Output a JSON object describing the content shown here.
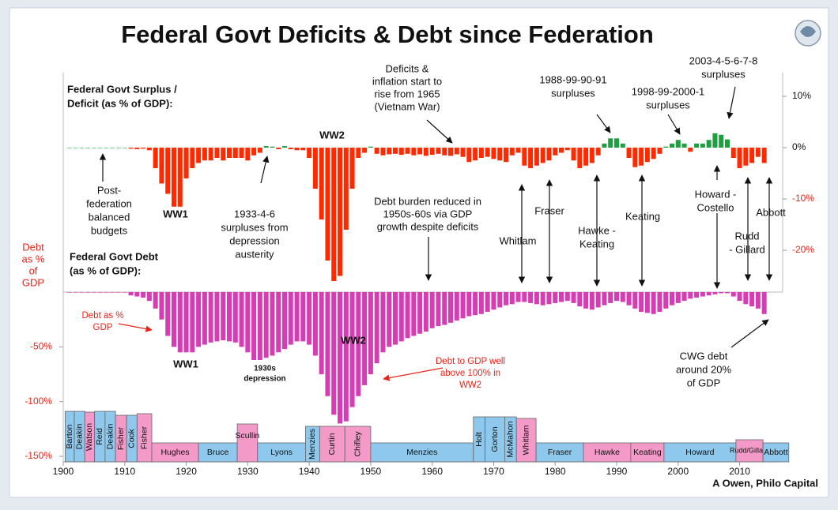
{
  "title": "Federal Govt Deficits & Debt since Federation",
  "chart_data": [
    {
      "type": "bar",
      "x": [
        1901,
        1902,
        1903,
        1904,
        1905,
        1906,
        1907,
        1908,
        1909,
        1910,
        1911,
        1912,
        1913,
        1914,
        1915,
        1916,
        1917,
        1918,
        1919,
        1920,
        1921,
        1922,
        1923,
        1924,
        1925,
        1926,
        1927,
        1928,
        1929,
        1930,
        1931,
        1932,
        1933,
        1934,
        1935,
        1936,
        1937,
        1938,
        1939,
        1940,
        1941,
        1942,
        1943,
        1944,
        1945,
        1946,
        1947,
        1948,
        1949,
        1950,
        1951,
        1952,
        1953,
        1954,
        1955,
        1956,
        1957,
        1958,
        1959,
        1960,
        1961,
        1962,
        1963,
        1964,
        1965,
        1966,
        1967,
        1968,
        1969,
        1970,
        1971,
        1972,
        1973,
        1974,
        1975,
        1976,
        1977,
        1978,
        1979,
        1980,
        1981,
        1982,
        1983,
        1984,
        1985,
        1986,
        1987,
        1988,
        1989,
        1990,
        1991,
        1992,
        1993,
        1994,
        1995,
        1996,
        1997,
        1998,
        1999,
        2000,
        2001,
        2002,
        2003,
        2004,
        2005,
        2006,
        2007,
        2008,
        2009,
        2010,
        2011,
        2012,
        2013,
        2014
      ],
      "values": [
        0,
        0,
        0,
        0,
        0,
        0,
        0,
        0,
        0,
        0,
        -0.2,
        -0.3,
        -0.2,
        -0.5,
        -4,
        -7,
        -9,
        -11.5,
        -11.5,
        -6,
        -4,
        -3,
        -2.5,
        -2.5,
        -2,
        -2.5,
        -2,
        -2,
        -2,
        -2.5,
        -1.5,
        -1,
        0.3,
        0.2,
        -0.3,
        0.3,
        -0.3,
        -0.5,
        -0.5,
        -2,
        -8,
        -14,
        -22,
        -26,
        -25,
        -16,
        -8,
        -2,
        -1,
        0.2,
        -1.2,
        -1.5,
        -1.3,
        -1.2,
        -1.4,
        -1.2,
        -1.5,
        -1.3,
        -1.6,
        -1.4,
        -1.2,
        -1.5,
        -1.6,
        -1.3,
        -1.8,
        -2.8,
        -2.5,
        -2,
        -1.8,
        -2.2,
        -2.5,
        -2.8,
        -1.5,
        -1,
        -3.5,
        -4,
        -3.5,
        -3,
        -2.5,
        -1.5,
        -1,
        -0.5,
        -2.5,
        -4,
        -3.5,
        -3,
        -1.5,
        0.8,
        1.8,
        1.8,
        0.8,
        -2,
        -3.8,
        -3.5,
        -2.8,
        -2.2,
        -1.2,
        0.2,
        0.8,
        1.5,
        0.8,
        -0.8,
        0.8,
        0.8,
        1.5,
        2.8,
        2.5,
        1.6,
        -2,
        -4,
        -3.5,
        -3,
        -1.8,
        -3
      ],
      "color": "#ff2a00",
      "positive_color": "#1fa040",
      "xlim": [
        1900,
        2017
      ],
      "ylim": [
        -28,
        15
      ],
      "yticks": [
        {
          "value": 10,
          "label": "10%"
        },
        {
          "value": 0,
          "label": "0%"
        },
        {
          "value": -10,
          "label": "-10%"
        },
        {
          "value": -20,
          "label": "-20%"
        }
      ]
    },
    {
      "type": "bar",
      "x": [
        1901,
        1902,
        1903,
        1904,
        1905,
        1906,
        1907,
        1908,
        1909,
        1910,
        1911,
        1912,
        1913,
        1914,
        1915,
        1916,
        1917,
        1918,
        1919,
        1920,
        1921,
        1922,
        1923,
        1924,
        1925,
        1926,
        1927,
        1928,
        1929,
        1930,
        1931,
        1932,
        1933,
        1934,
        1935,
        1936,
        1937,
        1938,
        1939,
        1940,
        1941,
        1942,
        1943,
        1944,
        1945,
        1946,
        1947,
        1948,
        1949,
        1950,
        1951,
        1952,
        1953,
        1954,
        1955,
        1956,
        1957,
        1958,
        1959,
        1960,
        1961,
        1962,
        1963,
        1964,
        1965,
        1966,
        1967,
        1968,
        1969,
        1970,
        1971,
        1972,
        1973,
        1974,
        1975,
        1976,
        1977,
        1978,
        1979,
        1980,
        1981,
        1982,
        1983,
        1984,
        1985,
        1986,
        1987,
        1988,
        1989,
        1990,
        1991,
        1992,
        1993,
        1994,
        1995,
        1996,
        1997,
        1998,
        1999,
        2000,
        2001,
        2002,
        2003,
        2004,
        2005,
        2006,
        2007,
        2008,
        2009,
        2010,
        2011,
        2012,
        2013,
        2014
      ],
      "values": [
        0,
        0,
        0,
        0,
        0,
        0,
        0,
        0,
        0,
        0,
        -3,
        -4,
        -5,
        -8,
        -15,
        -25,
        -40,
        -50,
        -55,
        -55,
        -55,
        -50,
        -48,
        -46,
        -45,
        -44,
        -45,
        -46,
        -50,
        -55,
        -62,
        -62,
        -60,
        -58,
        -55,
        -52,
        -48,
        -45,
        -45,
        -48,
        -58,
        -75,
        -95,
        -112,
        -120,
        -118,
        -105,
        -95,
        -85,
        -75,
        -65,
        -55,
        -50,
        -48,
        -45,
        -42,
        -40,
        -38,
        -36,
        -33,
        -31,
        -30,
        -28,
        -26,
        -24,
        -22,
        -21,
        -20,
        -18,
        -16,
        -14,
        -12,
        -11,
        -9,
        -9,
        -10,
        -11,
        -12,
        -11,
        -10,
        -9,
        -8,
        -10,
        -13,
        -15,
        -16,
        -14,
        -12,
        -10,
        -8,
        -9,
        -12,
        -15,
        -18,
        -19,
        -20,
        -18,
        -15,
        -12,
        -10,
        -8,
        -6,
        -5,
        -4,
        -3,
        -2,
        -1,
        -1,
        -4,
        -8,
        -11,
        -13,
        -15,
        -20
      ],
      "color": "#d63cb4",
      "xlim": [
        1900,
        2017
      ],
      "xticks": [
        1900,
        1910,
        1920,
        1930,
        1940,
        1950,
        1960,
        1970,
        1980,
        1990,
        2000,
        2010
      ],
      "ylim": [
        -155,
        0
      ],
      "yticks": [
        {
          "value": -50,
          "label": "-50%"
        },
        {
          "value": -100,
          "label": "-100%"
        },
        {
          "value": -150,
          "label": "-150%"
        }
      ]
    }
  ],
  "leaders": [
    {
      "name": "Barton",
      "from": 1900.3,
      "to": 1901.8,
      "color": "#8ec8ec"
    },
    {
      "name": "Deakin",
      "from": 1901.8,
      "to": 1903.5,
      "color": "#8ec8ec"
    },
    {
      "name": "Watson",
      "from": 1903.5,
      "to": 1905.1,
      "color": "#f49ac8"
    },
    {
      "name": "Reid",
      "from": 1905.1,
      "to": 1906.8,
      "color": "#8ec8ec"
    },
    {
      "name": "Deakin",
      "from": 1906.8,
      "to": 1908.5,
      "color": "#8ec8ec"
    },
    {
      "name": "Fisher",
      "from": 1908.5,
      "to": 1910.3,
      "color": "#f49ac8"
    },
    {
      "name": "Cook",
      "from": 1910.3,
      "to": 1912,
      "color": "#8ec8ec"
    },
    {
      "name": "Fisher",
      "from": 1912,
      "to": 1914.4,
      "color": "#f49ac8"
    },
    {
      "name": "Hughes",
      "from": 1914.4,
      "to": 1922,
      "color": "#f49ac8"
    },
    {
      "name": "Bruce",
      "from": 1922,
      "to": 1928.3,
      "color": "#8ec8ec"
    },
    {
      "name": "Scullin",
      "from": 1928.3,
      "to": 1931.6,
      "color": "#f49ac8"
    },
    {
      "name": "Lyons",
      "from": 1931.6,
      "to": 1939.4,
      "color": "#8ec8ec"
    },
    {
      "name": "Menzies",
      "from": 1939.4,
      "to": 1941.7,
      "color": "#8ec8ec"
    },
    {
      "name": "Curtin",
      "from": 1941.7,
      "to": 1945.8,
      "color": "#f49ac8"
    },
    {
      "name": "Chifley",
      "from": 1945.8,
      "to": 1950,
      "color": "#f49ac8"
    },
    {
      "name": "Menzies",
      "from": 1950,
      "to": 1966.7,
      "color": "#8ec8ec"
    },
    {
      "name": "Holt",
      "from": 1966.7,
      "to": 1968.6,
      "color": "#8ec8ec"
    },
    {
      "name": "Gorton",
      "from": 1968.6,
      "to": 1971.8,
      "color": "#8ec8ec"
    },
    {
      "name": "McMahon",
      "from": 1971.8,
      "to": 1973.7,
      "color": "#8ec8ec"
    },
    {
      "name": "Whitlam",
      "from": 1973.7,
      "to": 1976.9,
      "color": "#f49ac8"
    },
    {
      "name": "Fraser",
      "from": 1976.9,
      "to": 1984.6,
      "color": "#8ec8ec"
    },
    {
      "name": "Hawke",
      "from": 1984.6,
      "to": 1992.3,
      "color": "#f49ac8"
    },
    {
      "name": "Keating",
      "from": 1992.3,
      "to": 1997.7,
      "color": "#f49ac8"
    },
    {
      "name": "Howard",
      "from": 1997.7,
      "to": 2009.4,
      "color": "#8ec8ec"
    },
    {
      "name": "Rudd/Gillard",
      "from": 2009.4,
      "to": 2013.8,
      "color": "#f49ac8"
    },
    {
      "name": "Abbott",
      "from": 2013.8,
      "to": 2018,
      "color": "#8ec8ec"
    }
  ],
  "annotations": [
    {
      "lines": [
        "Federal Govt Surplus /",
        "Deficit (as % of GDP):"
      ]
    },
    {
      "lines": [
        "Post-",
        "federation",
        "balanced",
        "budgets"
      ]
    },
    {
      "lines": [
        "WW1"
      ]
    },
    {
      "lines": [
        "1933-4-6",
        "surpluses from",
        "depression",
        "austerity"
      ]
    },
    {
      "lines": [
        "WW2"
      ]
    },
    {
      "lines": [
        "Deficits &",
        "inflation start to",
        "rise from 1965",
        "(Vietnam War)"
      ]
    },
    {
      "lines": [
        "Debt burden reduced in",
        "1950s-60s via GDP",
        "growth despite deficits"
      ]
    },
    {
      "lines": [
        "1988-99-90-91",
        "surpluses"
      ]
    },
    {
      "lines": [
        "1998-99-2000-1",
        "surpluses"
      ]
    },
    {
      "lines": [
        "2003-4-5-6-7-8",
        "surpluses"
      ]
    },
    {
      "lines": [
        "Whitlam"
      ]
    },
    {
      "lines": [
        "Fraser"
      ]
    },
    {
      "lines": [
        "Hawke -",
        "Keating"
      ]
    },
    {
      "lines": [
        "Keating"
      ]
    },
    {
      "lines": [
        "Howard -",
        "Costello"
      ]
    },
    {
      "lines": [
        "Rudd",
        "- Gillard"
      ]
    },
    {
      "lines": [
        "Abbott"
      ]
    },
    {
      "lines": [
        "Debt",
        "as %",
        "of",
        "GDP"
      ]
    },
    {
      "lines": [
        "Federal Govt Debt",
        "(as % of GDP):"
      ]
    },
    {
      "lines": [
        "Debt as %",
        "GDP"
      ]
    },
    {
      "lines": [
        "WW1"
      ]
    },
    {
      "lines": [
        "1930s",
        "depression"
      ]
    },
    {
      "lines": [
        "WW2"
      ]
    },
    {
      "lines": [
        "Debt to GDP well",
        "above 100% in",
        "WW2"
      ]
    },
    {
      "lines": [
        "CWG debt",
        "around 20%",
        "of GDP"
      ]
    }
  ],
  "credit": "A Owen, Philo Capital"
}
